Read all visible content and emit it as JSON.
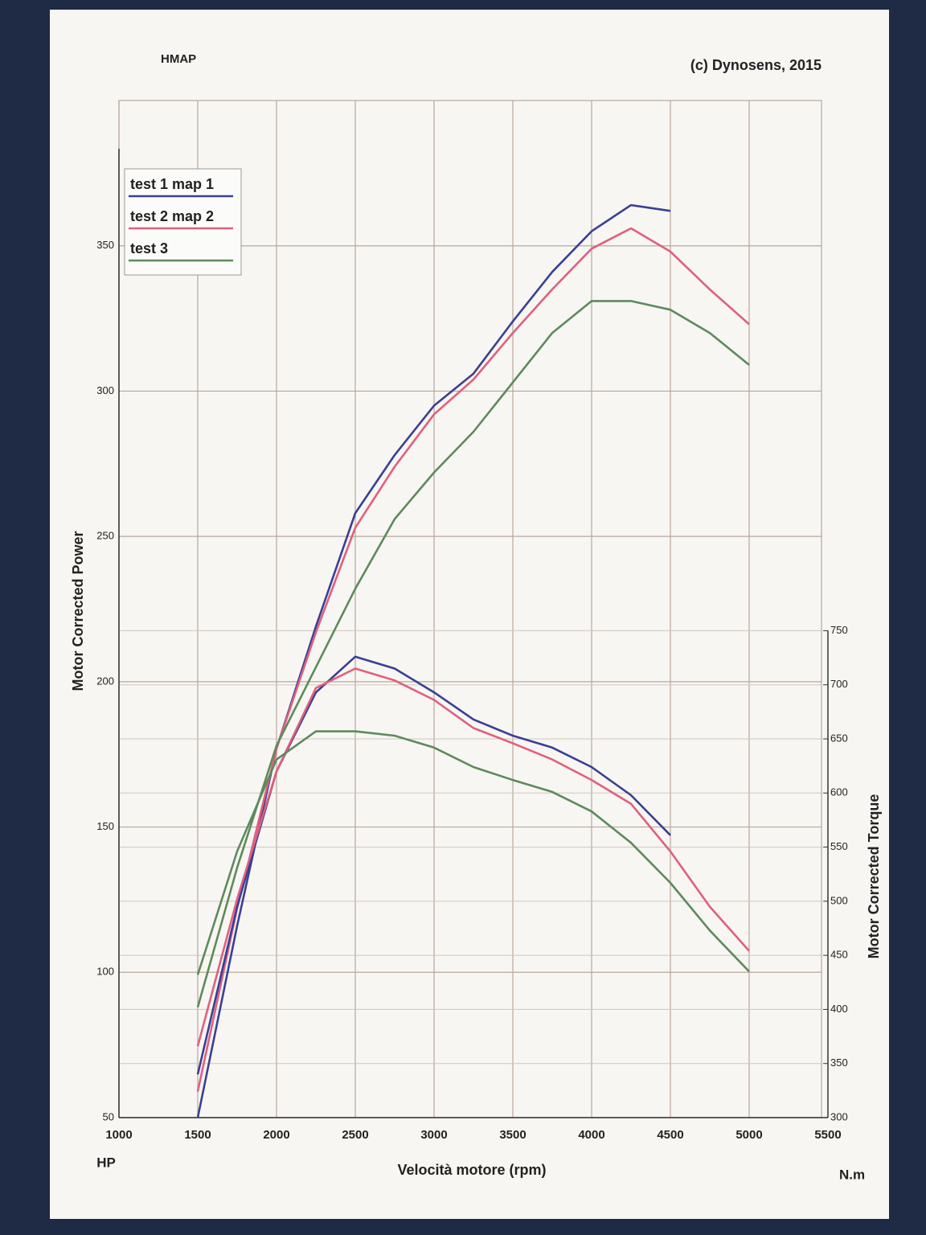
{
  "header": {
    "left": "HMAP",
    "right": "(c) Dynosens, 2015"
  },
  "chart_data": {
    "type": "line",
    "xlabel": "Velocità motore (rpm)",
    "ylabel": "Motor Corrected Power",
    "y2label": "Motor Corrected Torque",
    "y_unit": "HP",
    "y2_unit": "N.m",
    "x": [
      1500,
      1750,
      2000,
      2250,
      2500,
      2750,
      3000,
      3250,
      3500,
      3750,
      4000,
      4250,
      4500,
      4750,
      5000
    ],
    "xlim": [
      1000,
      5500
    ],
    "xticks": [
      1000,
      1500,
      2000,
      2500,
      3000,
      3500,
      4000,
      4500,
      5000,
      5500
    ],
    "ylim": [
      50,
      400
    ],
    "yticks": [
      50,
      100,
      150,
      200,
      250,
      300,
      350
    ],
    "y2lim": [
      300,
      1240
    ],
    "y2ticks": [
      300,
      350,
      400,
      450,
      500,
      550,
      600,
      650,
      700,
      750
    ],
    "grid": true,
    "legend": "upper left",
    "series": [
      {
        "name": "test 1 map 1",
        "color": "#3a3f94",
        "values": [
          50,
          116,
          177,
          219,
          258,
          278,
          295,
          306,
          324,
          341,
          355,
          364,
          362,
          null,
          null
        ]
      },
      {
        "name": "test 2 map 2",
        "color": "#e0607e",
        "values": [
          59,
          122,
          177,
          217,
          253,
          274,
          292,
          304,
          320,
          335,
          349,
          356,
          348,
          335,
          323
        ]
      },
      {
        "name": "test 3",
        "color": "#5e8a5a",
        "values": [
          88,
          136,
          178,
          205,
          232,
          256,
          272,
          286,
          303,
          320,
          331,
          331,
          328,
          320,
          309
        ]
      },
      {
        "color": "#3a3f94",
        "axis": "y2",
        "values": [
          340,
          495,
          620,
          693,
          726,
          715,
          693,
          668,
          653,
          642,
          624,
          598,
          561,
          null,
          null
        ]
      },
      {
        "color": "#e0607e",
        "axis": "y2",
        "values": [
          366,
          502,
          620,
          697,
          715,
          704,
          686,
          660,
          646,
          631,
          612,
          590,
          546,
          495,
          454
        ]
      },
      {
        "color": "#5e8a5a",
        "axis": "y2",
        "values": [
          432,
          546,
          631,
          657,
          657,
          653,
          642,
          624,
          612,
          601,
          583,
          554,
          517,
          473,
          435
        ]
      }
    ]
  }
}
